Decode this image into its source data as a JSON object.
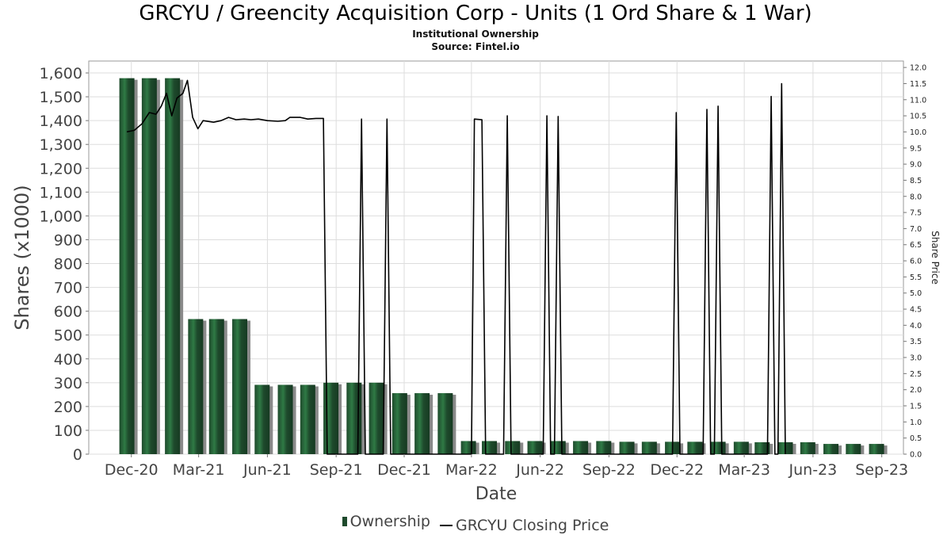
{
  "header": {
    "title": "GRCYU / Greencity Acquisition Corp - Units (1 Ord Share & 1 War)",
    "subtitle1": "Institutional Ownership",
    "subtitle2": "Source: Fintel.io"
  },
  "colors": {
    "bar": "#1e4a2c",
    "bar_highlight": "#2f7a45",
    "bar_shadow": "#8a8a8a",
    "line": "#000000",
    "grid": "#dddddd"
  },
  "chart_data": {
    "type": "bar",
    "xlabel": "Date",
    "ylabel": "Shares (x1000)",
    "y2label": "Share Price",
    "ylim": [
      0,
      1650
    ],
    "y2lim": [
      0,
      12.2
    ],
    "yticks": [
      "0",
      "100",
      "200",
      "300",
      "400",
      "500",
      "600",
      "700",
      "800",
      "900",
      "1,000",
      "1,100",
      "1,200",
      "1,300",
      "1,400",
      "1,500",
      "1,600"
    ],
    "y2ticks": [
      "0.0",
      "0.5",
      "1.0",
      "1.5",
      "2.0",
      "2.5",
      "3.0",
      "3.5",
      "4.0",
      "4.5",
      "5.0",
      "5.5",
      "6.0",
      "6.5",
      "7.0",
      "7.5",
      "8.0",
      "8.5",
      "9.0",
      "9.5",
      "10.0",
      "10.5",
      "11.0",
      "11.5",
      "12.0"
    ],
    "xrange": [
      "2020-10-05",
      "2023-09-30"
    ],
    "xticks": [
      {
        "label": "Dec-20",
        "date": "2020-12-01"
      },
      {
        "label": "Mar-21",
        "date": "2021-03-01"
      },
      {
        "label": "Jun-21",
        "date": "2021-06-01"
      },
      {
        "label": "Sep-21",
        "date": "2021-09-01"
      },
      {
        "label": "Dec-21",
        "date": "2021-12-01"
      },
      {
        "label": "Mar-22",
        "date": "2022-03-01"
      },
      {
        "label": "Jun-22",
        "date": "2022-06-01"
      },
      {
        "label": "Sep-22",
        "date": "2022-09-01"
      },
      {
        "label": "Dec-22",
        "date": "2022-12-01"
      },
      {
        "label": "Mar-23",
        "date": "2023-03-01"
      },
      {
        "label": "Jun-23",
        "date": "2023-06-01"
      },
      {
        "label": "Sep-23",
        "date": "2023-09-01"
      }
    ],
    "series": [
      {
        "name": "Ownership",
        "kind": "bar",
        "x": [
          "2020-11-25",
          "2020-12-25",
          "2021-01-25",
          "2021-02-25",
          "2021-03-25",
          "2021-04-25",
          "2021-05-25",
          "2021-06-25",
          "2021-07-25",
          "2021-08-25",
          "2021-09-25",
          "2021-10-25",
          "2021-11-25",
          "2021-12-25",
          "2022-01-25",
          "2022-02-25",
          "2022-03-25",
          "2022-04-25",
          "2022-05-25",
          "2022-06-25",
          "2022-07-25",
          "2022-08-25",
          "2022-09-25",
          "2022-10-25",
          "2022-11-25",
          "2022-12-25",
          "2023-01-25",
          "2023-02-25",
          "2023-03-25",
          "2023-04-25",
          "2023-05-25",
          "2023-06-25",
          "2023-07-25",
          "2023-08-25"
        ],
        "values": [
          1578,
          1578,
          1578,
          567,
          567,
          567,
          291,
          291,
          291,
          300,
          300,
          300,
          256,
          256,
          256,
          55,
          55,
          55,
          55,
          55,
          55,
          55,
          52,
          52,
          52,
          52,
          52,
          52,
          50,
          50,
          50,
          43,
          43,
          43
        ]
      },
      {
        "name": "GRCYU Closing Price",
        "kind": "line",
        "points": [
          [
            "2020-11-25",
            10.0
          ],
          [
            "2020-12-05",
            10.05
          ],
          [
            "2020-12-15",
            10.25
          ],
          [
            "2020-12-25",
            10.6
          ],
          [
            "2021-01-03",
            10.55
          ],
          [
            "2021-01-10",
            10.8
          ],
          [
            "2021-01-17",
            11.2
          ],
          [
            "2021-01-24",
            10.5
          ],
          [
            "2021-01-31",
            11.05
          ],
          [
            "2021-02-08",
            11.2
          ],
          [
            "2021-02-14",
            11.6
          ],
          [
            "2021-02-21",
            10.45
          ],
          [
            "2021-02-28",
            10.1
          ],
          [
            "2021-03-07",
            10.35
          ],
          [
            "2021-03-21",
            10.3
          ],
          [
            "2021-03-31",
            10.35
          ],
          [
            "2021-04-10",
            10.45
          ],
          [
            "2021-04-20",
            10.38
          ],
          [
            "2021-05-01",
            10.4
          ],
          [
            "2021-05-10",
            10.38
          ],
          [
            "2021-05-20",
            10.4
          ],
          [
            "2021-06-01",
            10.35
          ],
          [
            "2021-06-15",
            10.33
          ],
          [
            "2021-06-25",
            10.35
          ],
          [
            "2021-07-01",
            10.45
          ],
          [
            "2021-07-15",
            10.45
          ],
          [
            "2021-07-25",
            10.4
          ],
          [
            "2021-08-05",
            10.42
          ],
          [
            "2021-08-15",
            10.42
          ],
          [
            "2021-08-20",
            0
          ],
          [
            "2021-09-30",
            0
          ],
          [
            "2021-10-05",
            10.4
          ],
          [
            "2021-10-10",
            0
          ],
          [
            "2021-11-03",
            0
          ],
          [
            "2021-11-08",
            10.4
          ],
          [
            "2021-11-13",
            0
          ],
          [
            "2022-03-01",
            0
          ],
          [
            "2022-03-05",
            10.4
          ],
          [
            "2022-03-15",
            10.38
          ],
          [
            "2022-03-20",
            0
          ],
          [
            "2022-04-13",
            0
          ],
          [
            "2022-04-18",
            10.5
          ],
          [
            "2022-04-23",
            0
          ],
          [
            "2022-06-05",
            0
          ],
          [
            "2022-06-10",
            10.5
          ],
          [
            "2022-06-15",
            0
          ],
          [
            "2022-06-20",
            0
          ],
          [
            "2022-06-25",
            10.48
          ],
          [
            "2022-06-30",
            0
          ],
          [
            "2022-11-25",
            0
          ],
          [
            "2022-11-30",
            10.6
          ],
          [
            "2022-12-05",
            0
          ],
          [
            "2023-01-05",
            0
          ],
          [
            "2023-01-10",
            10.7
          ],
          [
            "2023-01-15",
            0
          ],
          [
            "2023-01-20",
            0
          ],
          [
            "2023-01-25",
            10.8
          ],
          [
            "2023-01-30",
            0
          ],
          [
            "2023-04-01",
            0
          ],
          [
            "2023-04-06",
            11.1
          ],
          [
            "2023-04-11",
            0
          ],
          [
            "2023-04-15",
            0
          ],
          [
            "2023-04-20",
            11.5
          ],
          [
            "2023-04-25",
            0
          ]
        ]
      }
    ],
    "legend": "bottom-center",
    "grid": true
  }
}
